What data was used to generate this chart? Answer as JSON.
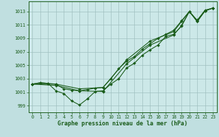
{
  "title": "Graphe pression niveau de la mer (hPa)",
  "bg_color": "#c0dfe0",
  "plot_bg_color": "#cce8e8",
  "grid_color": "#9fbfbf",
  "line_color": "#1a5c1a",
  "xlim": [
    -0.5,
    23.5
  ],
  "ylim": [
    998.0,
    1014.5
  ],
  "xticks": [
    0,
    1,
    2,
    3,
    4,
    5,
    6,
    7,
    8,
    9,
    10,
    11,
    12,
    13,
    14,
    15,
    16,
    17,
    18,
    19,
    20,
    21,
    22,
    23
  ],
  "yticks": [
    999,
    1001,
    1003,
    1005,
    1007,
    1009,
    1011,
    1013
  ],
  "series": [
    {
      "x": [
        0,
        1,
        2,
        3,
        4,
        5,
        6,
        7,
        8,
        9,
        10,
        11,
        12,
        13,
        14,
        15,
        16,
        17,
        18,
        19,
        20,
        21,
        22,
        23
      ],
      "y": [
        1002.2,
        1002.4,
        1002.3,
        1001.2,
        1000.8,
        999.7,
        999.1,
        1000.0,
        1001.1,
        1001.2,
        1002.2,
        1003.0,
        1004.6,
        1005.3,
        1006.5,
        1007.3,
        1008.0,
        1009.3,
        1009.6,
        1010.8,
        1013.0,
        1011.5,
        1013.1,
        1013.5
      ]
    },
    {
      "x": [
        0,
        1,
        2,
        3,
        4,
        5,
        6,
        7,
        8,
        9,
        10,
        11,
        12,
        13,
        14,
        15,
        16,
        17,
        18,
        19,
        20,
        21,
        22,
        23
      ],
      "y": [
        1002.2,
        1002.4,
        1002.3,
        1002.2,
        1001.5,
        1001.3,
        1001.2,
        1001.4,
        1001.6,
        1001.7,
        1003.0,
        1004.5,
        1005.6,
        1006.3,
        1007.4,
        1008.2,
        1009.0,
        1009.6,
        1010.2,
        1011.6,
        1013.0,
        1011.5,
        1013.1,
        1013.5
      ]
    },
    {
      "x": [
        0,
        3,
        6,
        9,
        12,
        15,
        18,
        19,
        20,
        21,
        22,
        23
      ],
      "y": [
        1002.2,
        1002.0,
        1001.2,
        1001.1,
        1005.2,
        1008.0,
        1009.5,
        1010.9,
        1013.0,
        1011.6,
        1013.1,
        1013.5
      ]
    },
    {
      "x": [
        0,
        3,
        6,
        9,
        12,
        15,
        18,
        19,
        20,
        21,
        22,
        23
      ],
      "y": [
        1002.2,
        1002.2,
        1001.5,
        1001.7,
        1005.8,
        1008.6,
        1010.0,
        1011.5,
        1013.0,
        1011.7,
        1013.2,
        1013.5
      ]
    }
  ]
}
